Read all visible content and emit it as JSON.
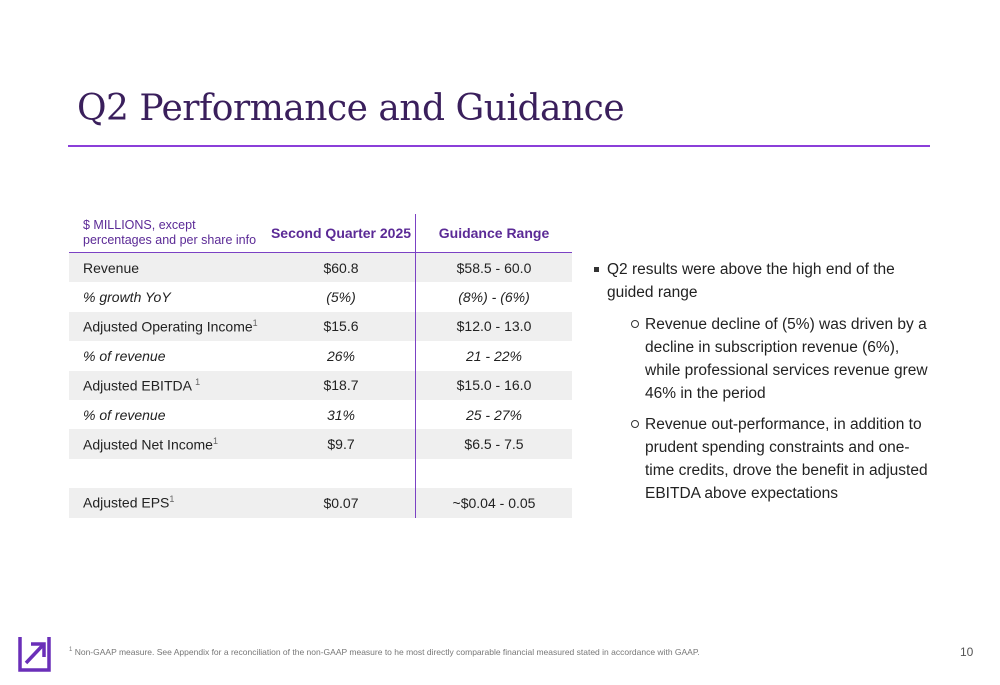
{
  "slide": {
    "title": "Q2 Performance and Guidance",
    "page_number": "10"
  },
  "table": {
    "header": {
      "label": "$ MILLIONS, except percentages and per share info",
      "col1": "Second Quarter 2025",
      "col2": "Guidance Range"
    },
    "rows": [
      {
        "label": "Revenue",
        "sup": "",
        "q2": "$60.8",
        "guidance": "$58.5 - 60.0"
      },
      {
        "label": "% growth YoY",
        "sup": "",
        "q2": "(5%)",
        "guidance": "(8%) - (6%)"
      },
      {
        "label": "Adjusted Operating Income",
        "sup": "1",
        "q2": "$15.6",
        "guidance": "$12.0 - 13.0"
      },
      {
        "label": "% of revenue",
        "sup": "",
        "q2": "26%",
        "guidance": "21 - 22%"
      },
      {
        "label": "Adjusted EBITDA ",
        "sup": "1",
        "q2": "$18.7",
        "guidance": "$15.0 - 16.0"
      },
      {
        "label": "% of revenue",
        "sup": "",
        "q2": "31%",
        "guidance": "25 - 27%"
      },
      {
        "label": "Adjusted Net Income",
        "sup": "1",
        "q2": "$9.7",
        "guidance": "$6.5 - 7.5"
      },
      {
        "label": "",
        "sup": "",
        "q2": "",
        "guidance": ""
      },
      {
        "label": "Adjusted EPS",
        "sup": "1",
        "q2": "$0.07",
        "guidance": "~$0.04 - 0.05"
      }
    ]
  },
  "bullets": {
    "main": "Q2 results were above the high end of the guided range",
    "sub": [
      "Revenue decline of (5%) was driven by a decline in subscription revenue (6%), while professional services revenue grew 46% in the period",
      "Revenue out-performance, in addition to prudent spending constraints and one-time credits, drove the benefit in adjusted EBITDA above expectations"
    ]
  },
  "footnote": {
    "marker": "1",
    "text": " Non-GAAP measure. See Appendix for a reconciliation of the non-GAAP measure to he most directly comparable financial measured stated in accordance with GAAP."
  },
  "colors": {
    "title": "#3a1f5c",
    "accent": "#8b3fd9",
    "header_text": "#5b2a96",
    "row_shade": "#efefef"
  },
  "icons": {
    "logo": "arrow-up-right-logo-icon"
  }
}
